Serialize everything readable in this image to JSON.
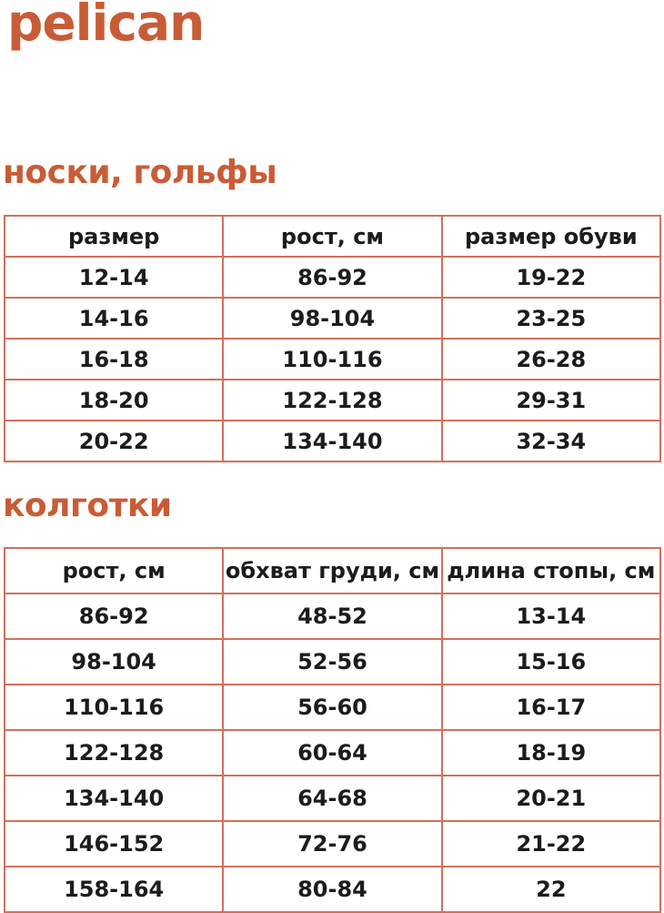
{
  "brand": {
    "logo_text": "pelican"
  },
  "colors": {
    "accent": "#C85C36",
    "border": "#D1715B",
    "cell-text": "#1C1C1C"
  },
  "sections": [
    {
      "id": "socks",
      "heading": "носки, гольфы",
      "table": {
        "headers": [
          "размер",
          "рост, см",
          "размер обуви"
        ],
        "rows": [
          [
            "12-14",
            "86-92",
            "19-22"
          ],
          [
            "14-16",
            "98-104",
            "23-25"
          ],
          [
            "16-18",
            "110-116",
            "26-28"
          ],
          [
            "18-20",
            "122-128",
            "29-31"
          ],
          [
            "20-22",
            "134-140",
            "32-34"
          ]
        ]
      }
    },
    {
      "id": "tights",
      "heading": "колготки",
      "table": {
        "headers": [
          "рост, см",
          "обхват груди, см",
          "длина стопы, см"
        ],
        "rows": [
          [
            "86-92",
            "48-52",
            "13-14"
          ],
          [
            "98-104",
            "52-56",
            "15-16"
          ],
          [
            "110-116",
            "56-60",
            "16-17"
          ],
          [
            "122-128",
            "60-64",
            "18-19"
          ],
          [
            "134-140",
            "64-68",
            "20-21"
          ],
          [
            "146-152",
            "72-76",
            "21-22"
          ],
          [
            "158-164",
            "80-84",
            "22"
          ]
        ]
      }
    }
  ]
}
